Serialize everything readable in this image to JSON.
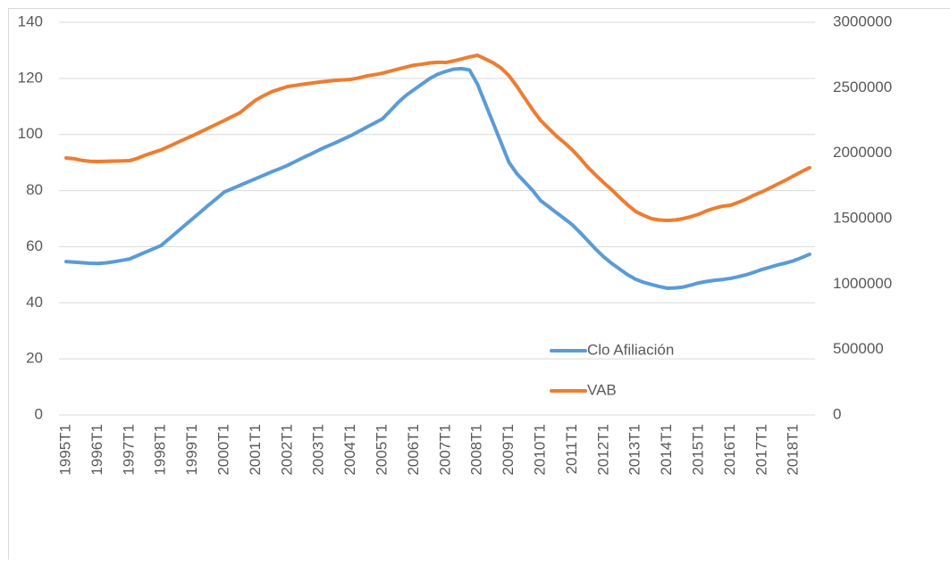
{
  "chart_data": {
    "type": "line",
    "categories": [
      "1995T1",
      null,
      null,
      null,
      "1996T1",
      null,
      null,
      null,
      "1997T1",
      null,
      null,
      null,
      "1998T1",
      null,
      null,
      null,
      "1999T1",
      null,
      null,
      null,
      "2000T1",
      null,
      null,
      null,
      "2001T1",
      null,
      null,
      null,
      "2002T1",
      null,
      null,
      null,
      "2003T1",
      null,
      null,
      null,
      "2004T1",
      null,
      null,
      null,
      "2005T1",
      null,
      null,
      null,
      "2006T1",
      null,
      null,
      null,
      "2007T1",
      null,
      null,
      null,
      "2008T1",
      null,
      null,
      null,
      "2009T1",
      null,
      null,
      null,
      "2010T1",
      null,
      null,
      null,
      "2011T1",
      null,
      null,
      null,
      "2012T1",
      null,
      null,
      null,
      "2013T1",
      null,
      null,
      null,
      "2014T1",
      null,
      null,
      null,
      "2015T1",
      null,
      null,
      null,
      "2016T1",
      null,
      null,
      null,
      "2017T1",
      null,
      null,
      null,
      "2018T1",
      null,
      null
    ],
    "series": [
      {
        "name": "Clo Afiliación",
        "color": "#5b9bd5",
        "axis": "y",
        "values": [
          54.7,
          54.5,
          54.3,
          54.1,
          54,
          54.2,
          54.6,
          55.1,
          55.6,
          56.8,
          58,
          59.2,
          60.4,
          62.8,
          65.2,
          67.6,
          70,
          72.4,
          74.8,
          77.1,
          79.5,
          80.7,
          81.9,
          83.1,
          84.3,
          85.5,
          86.7,
          87.8,
          89,
          90.4,
          91.8,
          93.1,
          94.5,
          95.8,
          97,
          98.3,
          99.6,
          101.1,
          102.6,
          104.1,
          105.6,
          108.5,
          111.5,
          114,
          116,
          118,
          120,
          121.5,
          122.5,
          123.3,
          123.5,
          123,
          118,
          111,
          104,
          97,
          90,
          86,
          83,
          80,
          76.4,
          74.3,
          72.1,
          70,
          67.8,
          65,
          62,
          59,
          56.3,
          54,
          52,
          50,
          48.4,
          47.3,
          46.5,
          45.8,
          45.2,
          45.3,
          45.6,
          46.3,
          47.1,
          47.6,
          48,
          48.3,
          48.7,
          49.3,
          50,
          50.9,
          51.9,
          52.7,
          53.5,
          54.2,
          55,
          56.1,
          57.3
        ]
      },
      {
        "name": "VAB",
        "color": "#ed7d31",
        "axis": "y2",
        "values": [
          1964000,
          1958000,
          1945000,
          1938000,
          1936000,
          1938000,
          1940000,
          1941000,
          1943000,
          1960000,
          1985000,
          2005000,
          2025000,
          2052000,
          2080000,
          2107000,
          2134000,
          2163000,
          2192000,
          2221000,
          2250000,
          2280000,
          2310000,
          2360000,
          2407000,
          2440000,
          2470000,
          2490000,
          2509000,
          2518000,
          2527000,
          2535000,
          2543000,
          2550000,
          2556000,
          2560000,
          2564000,
          2575000,
          2590000,
          2600000,
          2611000,
          2627000,
          2643000,
          2658000,
          2673000,
          2680000,
          2690000,
          2695000,
          2693000,
          2705000,
          2720000,
          2735000,
          2748000,
          2720000,
          2690000,
          2650000,
          2591000,
          2510000,
          2420000,
          2330000,
          2250000,
          2190000,
          2130000,
          2080000,
          2025000,
          1960000,
          1890000,
          1830000,
          1773000,
          1720000,
          1660000,
          1605000,
          1555000,
          1525000,
          1500000,
          1490000,
          1486000,
          1490000,
          1500000,
          1515000,
          1534000,
          1560000,
          1580000,
          1595000,
          1602000,
          1625000,
          1650000,
          1680000,
          1705000,
          1735000,
          1765000,
          1795000,
          1827000,
          1860000,
          1889000
        ]
      }
    ],
    "ylim": [
      0,
      140
    ],
    "yticks": [
      0,
      20,
      40,
      60,
      80,
      100,
      120,
      140
    ],
    "y2lim": [
      0,
      3000000
    ],
    "y2ticks": [
      0,
      500000,
      1000000,
      1500000,
      2000000,
      2500000,
      3000000
    ],
    "grid": true
  }
}
